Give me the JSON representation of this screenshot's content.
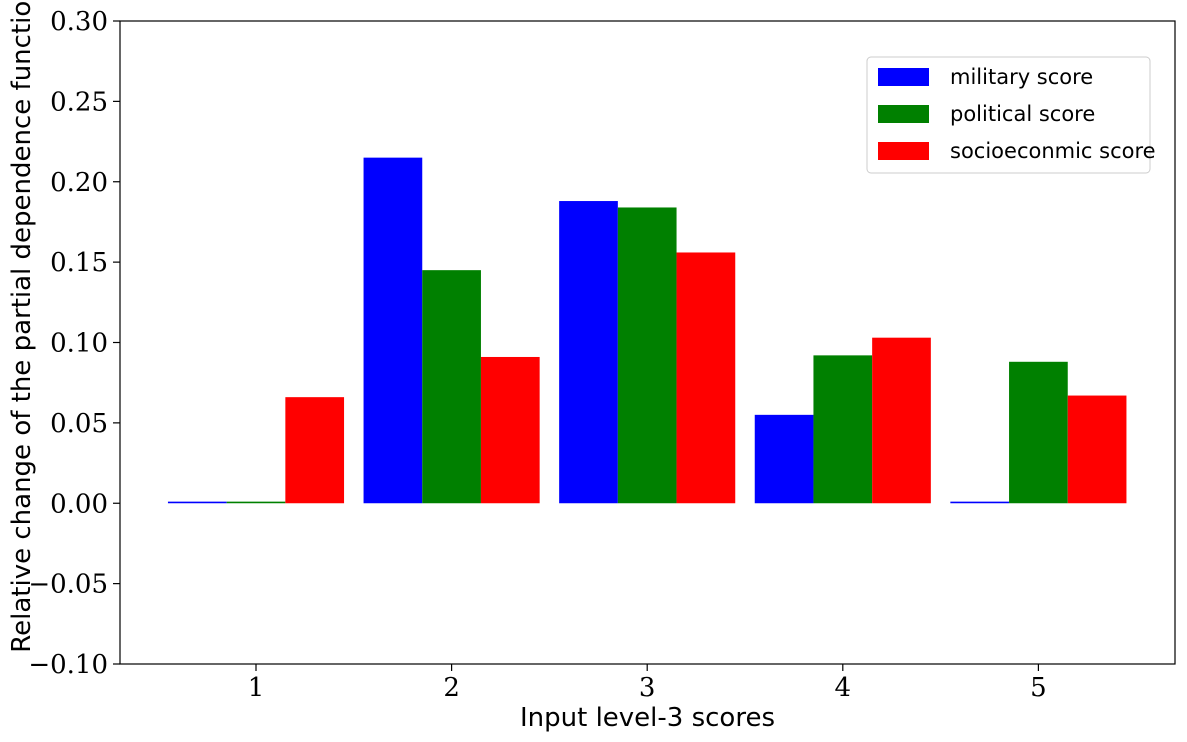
{
  "chart_data": {
    "type": "bar",
    "title": "",
    "xlabel": "Input level-3 scores",
    "ylabel": "Relative change of the partial dependence function",
    "categories": [
      "1",
      "2",
      "3",
      "4",
      "5"
    ],
    "series": [
      {
        "name": "military score",
        "color": "#0000ff",
        "values": [
          0.001,
          0.215,
          0.188,
          0.055,
          0.001
        ]
      },
      {
        "name": "political score",
        "color": "#008000",
        "values": [
          0.001,
          0.145,
          0.184,
          0.092,
          0.088
        ]
      },
      {
        "name": "socioeconmic score",
        "color": "#ff0000",
        "values": [
          0.066,
          0.091,
          0.156,
          0.103,
          0.067
        ]
      }
    ],
    "ylim": [
      -0.1,
      0.3
    ],
    "yticks": [
      "−0.10",
      "−0.05",
      "0.00",
      "0.05",
      "0.10",
      "0.15",
      "0.20",
      "0.25",
      "0.30"
    ],
    "grid": false,
    "legend_position": "top-right"
  }
}
